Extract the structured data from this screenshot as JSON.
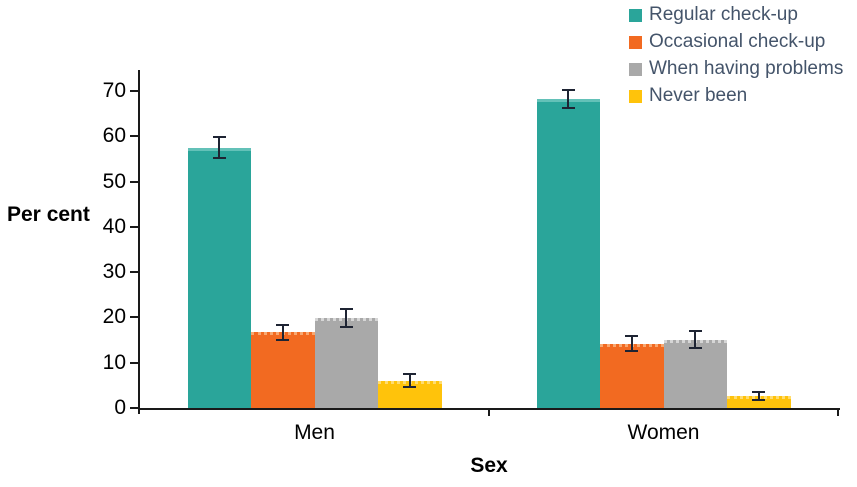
{
  "chart_data": {
    "type": "bar",
    "title": "",
    "xlabel": "Sex",
    "ylabel": "Per cent",
    "categories": [
      "Men",
      "Women"
    ],
    "series": [
      {
        "name": "Regular check-up",
        "color": "#2AA59A",
        "light_edge": "#63C1B8",
        "values": [
          57.5,
          68.3
        ],
        "errors": [
          2.3,
          2.0
        ]
      },
      {
        "name": "Occasional check-up",
        "color": "#F26A21",
        "light_edge": "#F8A871",
        "values": [
          16.7,
          14.2
        ],
        "errors": [
          1.7,
          1.7
        ]
      },
      {
        "name": "When having problems",
        "color": "#A9A9A9",
        "light_edge": "#D6D6D6",
        "values": [
          19.8,
          15.1
        ],
        "errors": [
          2.0,
          1.8
        ]
      },
      {
        "name": "Never been",
        "color": "#FFC30B",
        "light_edge": "#FFDC70",
        "values": [
          6.0,
          2.7
        ],
        "errors": [
          1.4,
          0.9
        ]
      }
    ],
    "yticks": [
      0,
      10,
      20,
      30,
      40,
      50,
      60,
      70
    ],
    "ylim": [
      0,
      70
    ],
    "grid": false,
    "error_bars": true,
    "legend_position": "top-right",
    "colors": {
      "axis": "#1A1A1A",
      "error_bar": "#1E2433",
      "tick_label": "#000000",
      "legend_text": "#44546A"
    }
  }
}
